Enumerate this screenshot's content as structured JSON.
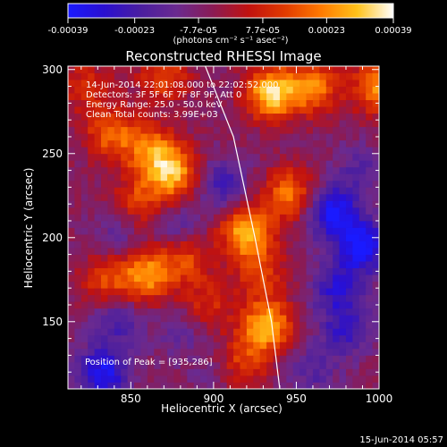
{
  "colorbar": {
    "tick_labels": [
      "-0.00039",
      "-0.00023",
      "-7.7e-05",
      "7.7e-05",
      "0.00023",
      "0.00039"
    ],
    "tick_values": [
      -0.00039,
      -0.00023,
      -7.7e-05,
      7.7e-05,
      0.00023,
      0.00039
    ],
    "range": [
      -0.00039,
      0.00039
    ],
    "units_label": "(photons cm⁻² s⁻¹ asec⁻²)",
    "stops": [
      "#1a1aff",
      "#2a0fd0",
      "#4a1ea0",
      "#6a2a90",
      "#8a1b55",
      "#c1120f",
      "#e03a00",
      "#ff7a00",
      "#ffc21a",
      "#ffffff"
    ]
  },
  "title": "Reconstructed RHESSI Image",
  "info_lines": [
    "14-Jun-2014 22:01:08.000 to 22:02:52.000",
    "Detectors: 3F 5F 6F 7F 8F 9F, Att 0",
    "Energy Range: 25.0 - 50.0 keV",
    "Clean     Total counts: 3.99E+03"
  ],
  "peak_label": "Position of Peak = [935,286]",
  "date_stamp": "15-Jun-2014 05:57",
  "chart_data": {
    "type": "heatmap",
    "title": "Reconstructed RHESSI Image",
    "xlabel": "Heliocentric X (arcsec)",
    "ylabel": "Heliocentric Y (arcsec)",
    "xlim": [
      812,
      1000
    ],
    "ylim": [
      110,
      302
    ],
    "xticks": [
      850,
      900,
      950,
      1000
    ],
    "yticks": [
      150,
      200,
      250,
      300
    ],
    "limb_curve": [
      [
        895,
        302
      ],
      [
        912,
        260
      ],
      [
        925,
        200
      ],
      [
        935,
        150
      ],
      [
        940,
        110
      ]
    ],
    "peak": [
      935,
      286
    ],
    "sources": [
      {
        "x": 838,
        "y": 262,
        "value": 0.00024
      },
      {
        "x": 862,
        "y": 252,
        "value": 0.00026
      },
      {
        "x": 876,
        "y": 238,
        "value": 0.00033
      },
      {
        "x": 855,
        "y": 222,
        "value": 0.00018
      },
      {
        "x": 835,
        "y": 176,
        "value": 0.0002
      },
      {
        "x": 860,
        "y": 178,
        "value": 0.00031
      },
      {
        "x": 883,
        "y": 188,
        "value": 0.0002
      },
      {
        "x": 920,
        "y": 204,
        "value": 0.00035
      },
      {
        "x": 928,
        "y": 180,
        "value": 0.00018
      },
      {
        "x": 946,
        "y": 226,
        "value": 0.00026
      },
      {
        "x": 935,
        "y": 286,
        "value": 0.00039
      },
      {
        "x": 960,
        "y": 290,
        "value": 0.00028
      },
      {
        "x": 1000,
        "y": 290,
        "value": 0.0003
      },
      {
        "x": 932,
        "y": 148,
        "value": 0.00035
      },
      {
        "x": 918,
        "y": 126,
        "value": 0.00018
      },
      {
        "x": 896,
        "y": 160,
        "value": 0.00015
      },
      {
        "x": 842,
        "y": 150,
        "value": -0.00015
      },
      {
        "x": 880,
        "y": 145,
        "value": -0.0001
      },
      {
        "x": 833,
        "y": 120,
        "value": -0.0003
      },
      {
        "x": 975,
        "y": 170,
        "value": -0.00022
      },
      {
        "x": 980,
        "y": 145,
        "value": -0.0002
      },
      {
        "x": 972,
        "y": 215,
        "value": -0.00032
      },
      {
        "x": 990,
        "y": 195,
        "value": -0.00034
      },
      {
        "x": 905,
        "y": 232,
        "value": -0.00018
      },
      {
        "x": 878,
        "y": 206,
        "value": -0.00013
      },
      {
        "x": 840,
        "y": 200,
        "value": -0.0001
      },
      {
        "x": 988,
        "y": 240,
        "value": -0.00012
      },
      {
        "x": 960,
        "y": 120,
        "value": -0.00012
      },
      {
        "x": 900,
        "y": 120,
        "value": -5e-05
      },
      {
        "x": 823,
        "y": 290,
        "value": 0.00015
      },
      {
        "x": 870,
        "y": 296,
        "value": 0.0002
      }
    ]
  }
}
